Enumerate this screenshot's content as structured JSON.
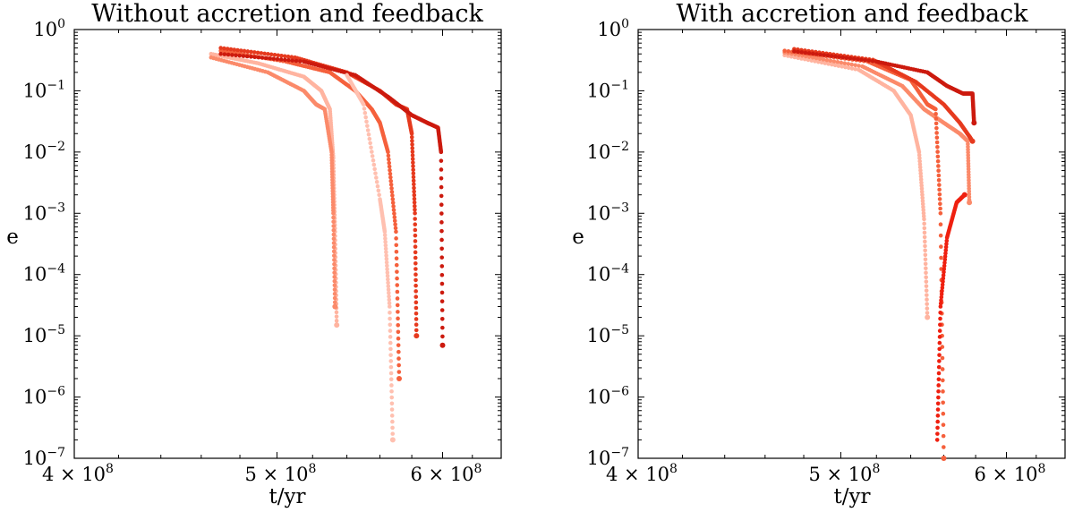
{
  "figure": {
    "panels": [
      {
        "title": "Without accretion and feedback",
        "xlabel": "t/yr",
        "ylabel": "e"
      },
      {
        "title": "With accretion and feedback",
        "xlabel": "t/yr",
        "ylabel": "e"
      }
    ]
  },
  "chart_data": [
    {
      "type": "scatter",
      "title": "Without accretion and feedback",
      "xlabel": "t/yr",
      "ylabel": "e",
      "xscale": "log",
      "yscale": "log",
      "xlim": [
        400000000,
        640000000
      ],
      "ylim": [
        1e-07,
        1
      ],
      "grid": false,
      "colors": [
        "#ffb4a0",
        "#fb8a6a",
        "#f5603c",
        "#e63a1e",
        "#cc1a0e",
        "#ef2010"
      ],
      "x_tick_labels": [
        {
          "base": "4 × 10",
          "exp": "8",
          "value": 400000000
        },
        {
          "base": "5 × 10",
          "exp": "8",
          "value": 500000000
        },
        {
          "base": "6 × 10",
          "exp": "8",
          "value": 600000000
        }
      ],
      "y_tick_labels": [
        {
          "base": "10",
          "exp": "0",
          "value": 1
        },
        {
          "base": "10",
          "exp": "−1",
          "value": 0.1
        },
        {
          "base": "10",
          "exp": "−2",
          "value": 0.01
        },
        {
          "base": "10",
          "exp": "−3",
          "value": 0.001
        },
        {
          "base": "10",
          "exp": "−4",
          "value": 0.0001
        },
        {
          "base": "10",
          "exp": "−5",
          "value": 1e-05
        },
        {
          "base": "10",
          "exp": "−6",
          "value": 1e-06
        },
        {
          "base": "10",
          "exp": "−7",
          "value": 1e-07
        }
      ],
      "series": [
        {
          "color": "#ffb4a0",
          "points": [
            [
              465000000.0,
              0.4
            ],
            [
              490000000.0,
              0.28
            ],
            [
              515000000.0,
              0.17
            ],
            [
              525000000.0,
              0.1
            ],
            [
              530000000.0,
              0.05
            ],
            [
              532000000.0,
              0.008
            ],
            [
              533000000.0,
              0.0005
            ],
            [
              534000000.0,
              1.5e-05
            ]
          ]
        },
        {
          "color": "#fb8a6a",
          "points": [
            [
              465000000.0,
              0.35
            ],
            [
              495000000.0,
              0.2
            ],
            [
              515000000.0,
              0.1
            ],
            [
              522000000.0,
              0.06
            ],
            [
              527000000.0,
              0.05
            ],
            [
              531000000.0,
              0.01
            ],
            [
              532000000.0,
              0.001
            ],
            [
              533000000.0,
              3e-05
            ]
          ]
        },
        {
          "color": "#f5603c",
          "points": [
            [
              470000000.0,
              0.45
            ],
            [
              505000000.0,
              0.3
            ],
            [
              530000000.0,
              0.2
            ],
            [
              545000000.0,
              0.1
            ],
            [
              555000000.0,
              0.05
            ],
            [
              560000000.0,
              0.03
            ],
            [
              565000000.0,
              0.01
            ],
            [
              570000000.0,
              0.0005
            ],
            [
              572000000.0,
              2e-06
            ]
          ]
        },
        {
          "color": "#e63a1e",
          "points": [
            [
              470000000.0,
              0.5
            ],
            [
              510000000.0,
              0.35
            ],
            [
              540000000.0,
              0.2
            ],
            [
              560000000.0,
              0.1
            ],
            [
              570000000.0,
              0.06
            ],
            [
              577000000.0,
              0.05
            ],
            [
              580000000.0,
              0.02
            ],
            [
              582000000.0,
              0.001
            ],
            [
              583000000.0,
              1e-05
            ]
          ]
        },
        {
          "color": "#cc1a0e",
          "points": [
            [
              470000000.0,
              0.4
            ],
            [
              515000000.0,
              0.3
            ],
            [
              545000000.0,
              0.18
            ],
            [
              565000000.0,
              0.08
            ],
            [
              580000000.0,
              0.04
            ],
            [
              590000000.0,
              0.03
            ],
            [
              597000000.0,
              0.025
            ],
            [
              599000000.0,
              0.01
            ],
            [
              600000000.0,
              7e-06
            ]
          ]
        },
        {
          "color": "#ffc0b0",
          "points": [
            [
              540000000.0,
              0.18
            ],
            [
              550000000.0,
              0.06
            ],
            [
              560000000.0,
              0.0017
            ],
            [
              563000000.0,
              0.0005
            ],
            [
              566000000.0,
              3e-05
            ],
            [
              568000000.0,
              2e-07
            ]
          ]
        }
      ]
    },
    {
      "type": "scatter",
      "title": "With accretion and feedback",
      "xlabel": "t/yr",
      "ylabel": "e",
      "xscale": "log",
      "yscale": "log",
      "xlim": [
        400000000,
        640000000
      ],
      "ylim": [
        1e-07,
        1
      ],
      "grid": false,
      "colors": [
        "#ffb4a0",
        "#fb8a6a",
        "#f5603c",
        "#e63a1e",
        "#cc1a0e",
        "#ef2010"
      ],
      "x_tick_labels": [
        {
          "base": "4 × 10",
          "exp": "8",
          "value": 400000000
        },
        {
          "base": "5 × 10",
          "exp": "8",
          "value": 500000000
        },
        {
          "base": "6 × 10",
          "exp": "8",
          "value": 600000000
        }
      ],
      "y_tick_labels": [
        {
          "base": "10",
          "exp": "0",
          "value": 1
        },
        {
          "base": "10",
          "exp": "−1",
          "value": 0.1
        },
        {
          "base": "10",
          "exp": "−2",
          "value": 0.01
        },
        {
          "base": "10",
          "exp": "−3",
          "value": 0.001
        },
        {
          "base": "10",
          "exp": "−4",
          "value": 0.0001
        },
        {
          "base": "10",
          "exp": "−5",
          "value": 1e-05
        },
        {
          "base": "10",
          "exp": "−6",
          "value": 1e-06
        },
        {
          "base": "10",
          "exp": "−7",
          "value": 1e-07
        }
      ],
      "series": [
        {
          "color": "#ffb4a0",
          "points": [
            [
              470000000.0,
              0.38
            ],
            [
              510000000.0,
              0.22
            ],
            [
              530000000.0,
              0.1
            ],
            [
              540000000.0,
              0.04
            ],
            [
              545000000.0,
              0.01
            ],
            [
              548000000.0,
              0.0008
            ],
            [
              550000000.0,
              2e-05
            ]
          ]
        },
        {
          "color": "#fb8a6a",
          "points": [
            [
              470000000.0,
              0.42
            ],
            [
              512000000.0,
              0.25
            ],
            [
              535000000.0,
              0.12
            ],
            [
              548000000.0,
              0.05
            ],
            [
              560000000.0,
              0.03
            ],
            [
              570000000.0,
              0.02
            ],
            [
              575000000.0,
              0.015
            ],
            [
              576000000.0,
              0.0015
            ]
          ]
        },
        {
          "color": "#f5603c",
          "points": [
            [
              470000000.0,
              0.45
            ],
            [
              515000000.0,
              0.3
            ],
            [
              540000000.0,
              0.15
            ],
            [
              550000000.0,
              0.06
            ],
            [
              555000000.0,
              0.05
            ],
            [
              558000000.0,
              0.001
            ],
            [
              560000000.0,
              1e-07
            ]
          ]
        },
        {
          "color": "#e63a1e",
          "points": [
            [
              475000000.0,
              0.48
            ],
            [
              518000000.0,
              0.32
            ],
            [
              543000000.0,
              0.14
            ],
            [
              560000000.0,
              0.06
            ],
            [
              570000000.0,
              0.03
            ],
            [
              576000000.0,
              0.018
            ],
            [
              578000000.0,
              0.015
            ]
          ]
        },
        {
          "color": "#cc1a0e",
          "points": [
            [
              475000000.0,
              0.44
            ],
            [
              520000000.0,
              0.3
            ],
            [
              550000000.0,
              0.2
            ],
            [
              562000000.0,
              0.12
            ],
            [
              572000000.0,
              0.09
            ],
            [
              578000000.0,
              0.09
            ],
            [
              579000000.0,
              0.03
            ]
          ]
        },
        {
          "color": "#ef2010",
          "points": [
            [
              556000000.0,
              2e-07
            ],
            [
              558000000.0,
              3e-05
            ],
            [
              562000000.0,
              0.0004
            ],
            [
              568000000.0,
              0.0015
            ],
            [
              573000000.0,
              0.002
            ]
          ]
        }
      ]
    }
  ]
}
